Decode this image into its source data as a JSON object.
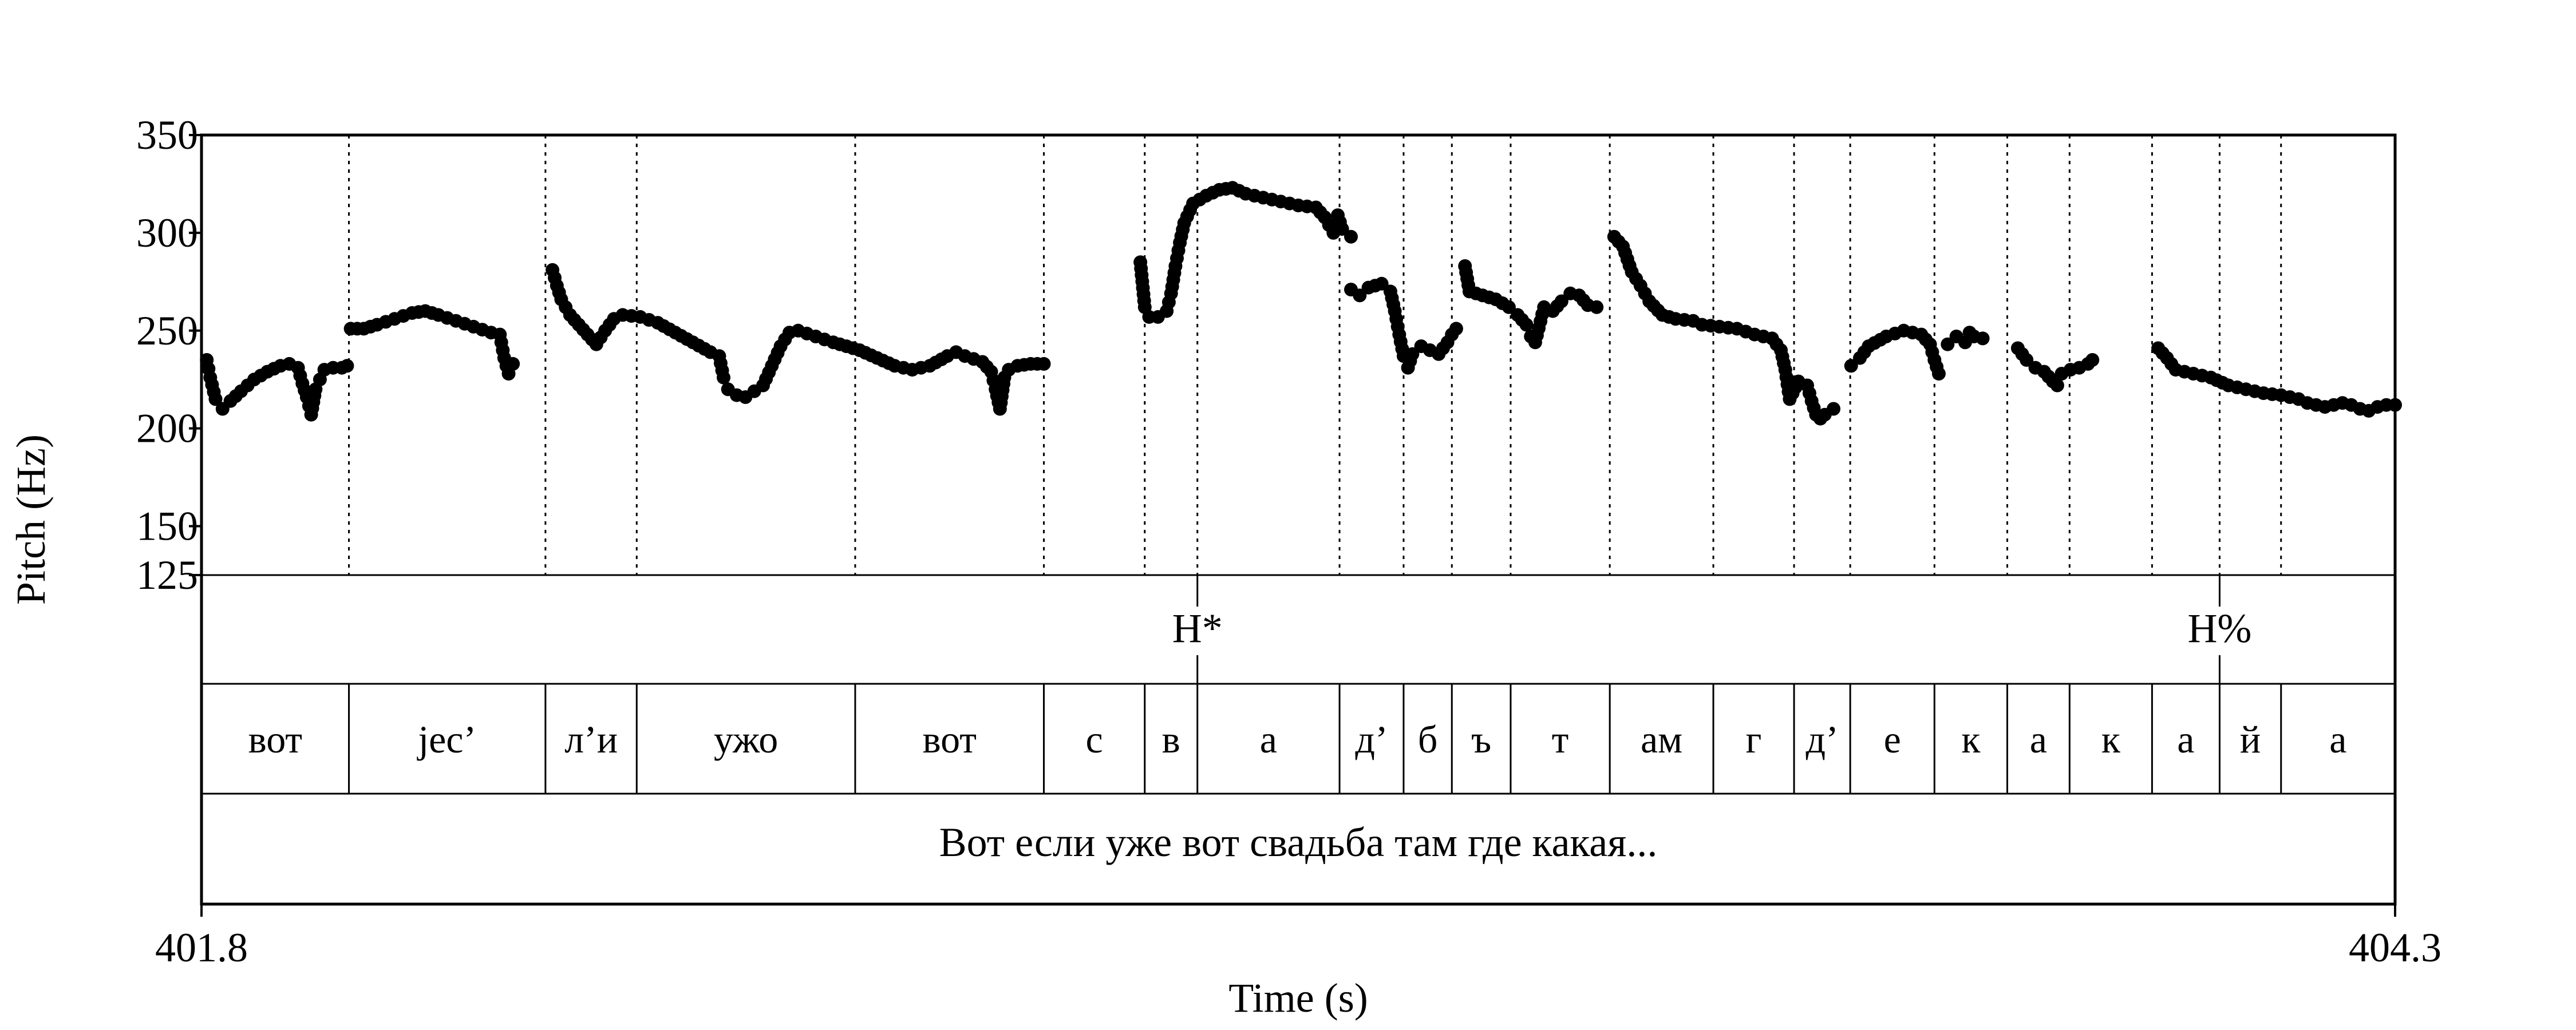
{
  "chart_data": {
    "type": "scatter",
    "xlabel": "Time (s)",
    "ylabel": "Pitch (Hz)",
    "xlim": [
      401.8,
      404.3
    ],
    "ylim": [
      125,
      350
    ],
    "x_ticks": [
      "401.8",
      "404.3"
    ],
    "y_ticks": [
      125,
      150,
      200,
      250,
      300,
      350
    ],
    "y_tick_labels": [
      "125",
      "150",
      "200",
      "250",
      "300",
      "350"
    ],
    "grid": "dotted vertical lines at segment boundaries",
    "point_color": "#000000",
    "tones": [
      {
        "label": "H*",
        "time": 402.935
      },
      {
        "label": "H%",
        "time": 404.1
      }
    ],
    "segments": [
      {
        "label": "вот",
        "start": 401.8,
        "end": 401.968
      },
      {
        "label": "jec’",
        "start": 401.968,
        "end": 402.192
      },
      {
        "label": "л’и",
        "start": 402.192,
        "end": 402.296
      },
      {
        "label": "ужо",
        "start": 402.296,
        "end": 402.545
      },
      {
        "label": "вот",
        "start": 402.545,
        "end": 402.76
      },
      {
        "label": "с",
        "start": 402.76,
        "end": 402.875
      },
      {
        "label": "в",
        "start": 402.875,
        "end": 402.935
      },
      {
        "label": "а",
        "start": 402.935,
        "end": 403.097
      },
      {
        "label": "д’",
        "start": 403.097,
        "end": 403.17
      },
      {
        "label": "б",
        "start": 403.17,
        "end": 403.225
      },
      {
        "label": "ъ",
        "start": 403.225,
        "end": 403.292
      },
      {
        "label": "т",
        "start": 403.292,
        "end": 403.405
      },
      {
        "label": "ам",
        "start": 403.405,
        "end": 403.523
      },
      {
        "label": "г",
        "start": 403.523,
        "end": 403.615
      },
      {
        "label": "д’",
        "start": 403.615,
        "end": 403.679
      },
      {
        "label": "е",
        "start": 403.679,
        "end": 403.775
      },
      {
        "label": "к",
        "start": 403.775,
        "end": 403.858
      },
      {
        "label": "а",
        "start": 403.858,
        "end": 403.929
      },
      {
        "label": "к",
        "start": 403.929,
        "end": 404.023
      },
      {
        "label": "а",
        "start": 404.023,
        "end": 404.1
      },
      {
        "label": "й",
        "start": 404.1,
        "end": 404.17
      },
      {
        "label": "а",
        "start": 404.17,
        "end": 404.3
      }
    ],
    "sentence": "Вот если уже вот свадьба там где какая...",
    "pitch_contours": [
      [
        [
          401.806,
          235
        ],
        [
          401.81,
          226
        ],
        [
          401.816,
          215
        ],
        [
          401.824,
          210
        ],
        [
          401.833,
          214
        ],
        [
          401.845,
          219
        ],
        [
          401.86,
          225
        ],
        [
          401.875,
          229
        ],
        [
          401.89,
          232
        ],
        [
          401.9,
          233
        ],
        [
          401.91,
          231
        ],
        [
          401.915,
          223
        ],
        [
          401.92,
          216
        ],
        [
          401.925,
          207
        ],
        [
          401.93,
          220
        ],
        [
          401.935,
          225
        ],
        [
          401.94,
          230
        ],
        [
          401.95,
          231
        ],
        [
          401.96,
          231
        ],
        [
          401.966,
          232
        ]
      ],
      [
        [
          401.97,
          251
        ],
        [
          401.985,
          251
        ],
        [
          402.0,
          253
        ],
        [
          402.02,
          256
        ],
        [
          402.04,
          259
        ],
        [
          402.055,
          260
        ],
        [
          402.07,
          258
        ],
        [
          402.09,
          255
        ],
        [
          402.11,
          252
        ],
        [
          402.13,
          249
        ],
        [
          402.14,
          248
        ],
        [
          402.145,
          236
        ],
        [
          402.15,
          228
        ],
        [
          402.155,
          233
        ]
      ],
      [
        [
          402.2,
          281
        ],
        [
          402.205,
          273
        ],
        [
          402.21,
          266
        ],
        [
          402.22,
          258
        ],
        [
          402.23,
          253
        ],
        [
          402.24,
          248
        ],
        [
          402.25,
          243
        ],
        [
          402.26,
          250
        ],
        [
          402.27,
          256
        ],
        [
          402.28,
          258
        ],
        [
          402.3,
          257
        ],
        [
          402.32,
          254
        ],
        [
          402.34,
          249
        ],
        [
          402.36,
          244
        ],
        [
          402.38,
          239
        ],
        [
          402.39,
          237
        ],
        [
          402.395,
          226
        ],
        [
          402.4,
          220
        ],
        [
          402.41,
          217
        ],
        [
          402.42,
          216
        ],
        [
          402.43,
          219
        ],
        [
          402.44,
          222
        ],
        [
          402.45,
          232
        ],
        [
          402.46,
          242
        ],
        [
          402.47,
          249
        ],
        [
          402.48,
          250
        ],
        [
          402.5,
          247
        ],
        [
          402.52,
          244
        ],
        [
          402.55,
          240
        ],
        [
          402.57,
          236
        ],
        [
          402.59,
          232
        ],
        [
          402.61,
          230
        ],
        [
          402.63,
          232
        ],
        [
          402.65,
          237
        ],
        [
          402.66,
          239
        ],
        [
          402.67,
          237
        ],
        [
          402.69,
          234
        ],
        [
          402.7,
          229
        ],
        [
          402.705,
          220
        ],
        [
          402.71,
          210
        ],
        [
          402.715,
          226
        ],
        [
          402.72,
          230
        ],
        [
          402.73,
          232
        ],
        [
          402.745,
          233
        ],
        [
          402.76,
          233
        ]
      ],
      [
        [
          402.87,
          285
        ],
        [
          402.875,
          262
        ],
        [
          402.88,
          257
        ],
        [
          402.89,
          257
        ],
        [
          402.9,
          260
        ],
        [
          402.905,
          269
        ],
        [
          402.91,
          283
        ],
        [
          402.915,
          295
        ],
        [
          402.92,
          305
        ],
        [
          402.93,
          315
        ],
        [
          402.945,
          319
        ],
        [
          402.96,
          322
        ],
        [
          402.975,
          323
        ],
        [
          402.99,
          320
        ],
        [
          403.01,
          318
        ],
        [
          403.03,
          316
        ],
        [
          403.05,
          314
        ],
        [
          403.07,
          313
        ],
        [
          403.08,
          308
        ],
        [
          403.09,
          300
        ],
        [
          403.095,
          309
        ],
        [
          403.1,
          302
        ],
        [
          403.11,
          298
        ]
      ],
      [
        [
          403.11,
          271
        ],
        [
          403.12,
          268
        ],
        [
          403.13,
          272
        ],
        [
          403.145,
          274
        ],
        [
          403.155,
          270
        ],
        [
          403.16,
          260
        ],
        [
          403.165,
          248
        ],
        [
          403.17,
          237
        ],
        [
          403.175,
          231
        ],
        [
          403.18,
          238
        ],
        [
          403.19,
          242
        ],
        [
          403.2,
          240
        ],
        [
          403.21,
          238
        ],
        [
          403.22,
          244
        ],
        [
          403.225,
          248
        ],
        [
          403.23,
          251
        ]
      ],
      [
        [
          403.24,
          283
        ],
        [
          403.245,
          270
        ],
        [
          403.26,
          268
        ],
        [
          403.275,
          266
        ],
        [
          403.29,
          262
        ],
        [
          403.3,
          258
        ],
        [
          403.31,
          253
        ],
        [
          403.315,
          247
        ],
        [
          403.32,
          244
        ],
        [
          403.33,
          262
        ],
        [
          403.34,
          260
        ],
        [
          403.35,
          265
        ],
        [
          403.36,
          269
        ],
        [
          403.37,
          268
        ],
        [
          403.38,
          263
        ],
        [
          403.39,
          262
        ]
      ],
      [
        [
          403.41,
          298
        ],
        [
          403.42,
          293
        ],
        [
          403.43,
          280
        ],
        [
          403.44,
          273
        ],
        [
          403.45,
          265
        ],
        [
          403.465,
          258
        ],
        [
          403.48,
          256
        ],
        [
          403.5,
          255
        ],
        [
          403.51,
          253
        ],
        [
          403.53,
          252
        ],
        [
          403.55,
          251
        ],
        [
          403.57,
          248
        ],
        [
          403.59,
          246
        ],
        [
          403.6,
          240
        ],
        [
          403.605,
          230
        ],
        [
          403.61,
          215
        ],
        [
          403.62,
          224
        ],
        [
          403.63,
          222
        ],
        [
          403.635,
          214
        ],
        [
          403.64,
          207
        ],
        [
          403.645,
          205
        ],
        [
          403.65,
          207
        ],
        [
          403.66,
          210
        ]
      ],
      [
        [
          403.68,
          232
        ],
        [
          403.69,
          236
        ],
        [
          403.7,
          242
        ],
        [
          403.72,
          247
        ],
        [
          403.74,
          250
        ],
        [
          403.76,
          248
        ],
        [
          403.77,
          243
        ],
        [
          403.775,
          235
        ],
        [
          403.78,
          228
        ]
      ],
      [
        [
          403.79,
          243
        ],
        [
          403.8,
          247
        ],
        [
          403.81,
          244
        ],
        [
          403.815,
          249
        ],
        [
          403.82,
          247
        ],
        [
          403.83,
          246
        ]
      ],
      [
        [
          403.87,
          241
        ],
        [
          403.88,
          235
        ],
        [
          403.89,
          231
        ],
        [
          403.9,
          229
        ],
        [
          403.91,
          224
        ],
        [
          403.915,
          222
        ],
        [
          403.92,
          228
        ],
        [
          403.93,
          230
        ],
        [
          403.94,
          231
        ],
        [
          403.95,
          233
        ],
        [
          403.955,
          235
        ]
      ],
      [
        [
          404.03,
          241
        ],
        [
          404.04,
          236
        ],
        [
          404.05,
          230
        ],
        [
          404.07,
          228
        ],
        [
          404.09,
          226
        ],
        [
          404.11,
          222
        ],
        [
          404.13,
          220
        ],
        [
          404.15,
          218
        ],
        [
          404.17,
          217
        ],
        [
          404.19,
          215
        ],
        [
          404.2,
          213
        ],
        [
          404.21,
          212
        ],
        [
          404.22,
          211
        ],
        [
          404.23,
          212
        ],
        [
          404.24,
          213
        ],
        [
          404.25,
          212
        ],
        [
          404.26,
          210
        ],
        [
          404.27,
          209
        ],
        [
          404.28,
          211
        ],
        [
          404.29,
          212
        ],
        [
          404.3,
          212
        ]
      ]
    ]
  }
}
